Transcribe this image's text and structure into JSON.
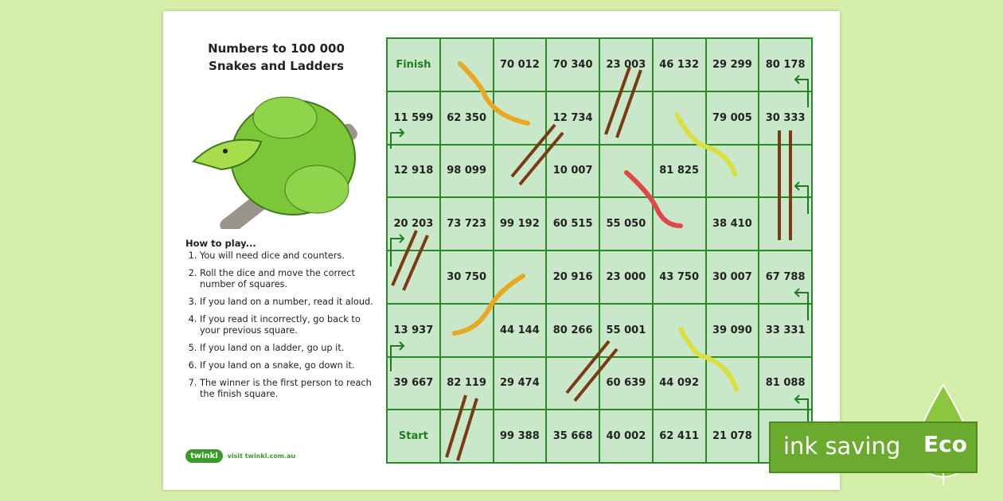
{
  "title": {
    "line1": "Numbers to 100 000",
    "line2": "Snakes and Ladders"
  },
  "how_to": {
    "heading": "How to play...",
    "steps": [
      "You will need dice and counters.",
      "Roll the dice and move the correct number of squares.",
      "If you land on a number, read it aloud.",
      "If you read it incorrectly, go back to your previous square.",
      "If you land on a ladder, go up it.",
      "If you land on a snake, go down it.",
      "The winner is the first person to reach the finish square."
    ]
  },
  "logo": {
    "brand": "twinkl",
    "url": "visit twinkl.com.au"
  },
  "board": {
    "rows": [
      [
        "Finish",
        "",
        "70 012",
        "70 340",
        "23 003",
        "46 132",
        "29 299",
        "80 178"
      ],
      [
        "11 599",
        "62 350",
        "",
        "12 734",
        "",
        "",
        "79 005",
        "30 333"
      ],
      [
        "12 918",
        "98 099",
        "",
        "10 007",
        "",
        "81 825",
        "",
        ""
      ],
      [
        "20 203",
        "73 723",
        "99 192",
        "60 515",
        "55 050",
        "",
        "38 410",
        ""
      ],
      [
        "",
        "30 750",
        "",
        "20 916",
        "23 000",
        "43 750",
        "30 007",
        "67 788"
      ],
      [
        "13 937",
        "",
        "44 144",
        "80 266",
        "55 001",
        "",
        "39 090",
        "33 331"
      ],
      [
        "39 667",
        "82 119",
        "29 474",
        "",
        "60 639",
        "44 092",
        "",
        "81 088"
      ],
      [
        "Start",
        "",
        "99 388",
        "35 668",
        "40 002",
        "62 411",
        "21 078",
        ""
      ]
    ]
  },
  "badge": {
    "text": "ink saving",
    "eco": "Eco"
  },
  "colors": {
    "background": "#d5efab",
    "cell": "#c9e7c9",
    "grid": "#2a8a2a",
    "badge": "#6aaa2e"
  }
}
